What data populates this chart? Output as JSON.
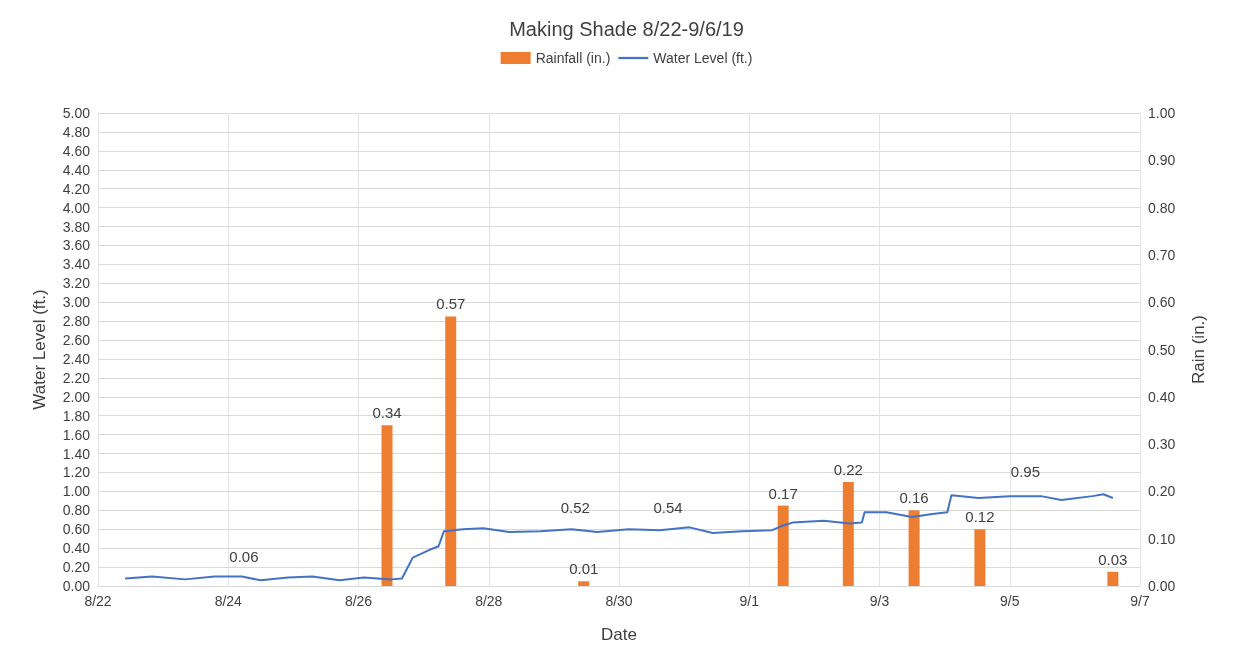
{
  "chart_data": {
    "type": "line",
    "title": "Making Shade 8/22-9/6/19",
    "xlabel": "Date",
    "ylabel": "Water Level (ft.)",
    "y2label": "Rain (in.)",
    "xlim": [
      "--08-22",
      "--09-07"
    ],
    "xticks": [
      {
        "value": "--08-22",
        "label": "8/22"
      },
      {
        "value": "--08-24",
        "label": "8/24"
      },
      {
        "value": "--08-26",
        "label": "8/26"
      },
      {
        "value": "--08-28",
        "label": "8/28"
      },
      {
        "value": "--08-30",
        "label": "8/30"
      },
      {
        "value": "--09-01",
        "label": "9/1"
      },
      {
        "value": "--09-03",
        "label": "9/3"
      },
      {
        "value": "--09-05",
        "label": "9/5"
      },
      {
        "value": "--09-07",
        "label": "9/7"
      }
    ],
    "ylim": [
      0,
      5
    ],
    "yticks": [
      {
        "value": 0,
        "label": "0.00"
      },
      {
        "value": 0.2,
        "label": "0.20"
      },
      {
        "value": 0.4,
        "label": "0.40"
      },
      {
        "value": 0.6,
        "label": "0.60"
      },
      {
        "value": 0.8,
        "label": "0.80"
      },
      {
        "value": 1,
        "label": "1.00"
      },
      {
        "value": 1.2,
        "label": "1.20"
      },
      {
        "value": 1.4,
        "label": "1.40"
      },
      {
        "value": 1.6,
        "label": "1.60"
      },
      {
        "value": 1.8,
        "label": "1.80"
      },
      {
        "value": 2,
        "label": "2.00"
      },
      {
        "value": 2.2,
        "label": "2.20"
      },
      {
        "value": 2.4,
        "label": "2.40"
      },
      {
        "value": 2.6,
        "label": "2.60"
      },
      {
        "value": 2.8,
        "label": "2.80"
      },
      {
        "value": 3,
        "label": "3.00"
      },
      {
        "value": 3.2,
        "label": "3.20"
      },
      {
        "value": 3.4,
        "label": "3.40"
      },
      {
        "value": 3.6,
        "label": "3.60"
      },
      {
        "value": 3.8,
        "label": "3.80"
      },
      {
        "value": 4,
        "label": "4.00"
      },
      {
        "value": 4.2,
        "label": "4.20"
      },
      {
        "value": 4.4,
        "label": "4.40"
      },
      {
        "value": 4.6,
        "label": "4.60"
      },
      {
        "value": 4.8,
        "label": "4.80"
      },
      {
        "value": 5,
        "label": "5.00"
      }
    ],
    "y2lim": [
      0,
      1
    ],
    "y2ticks": [
      {
        "value": 0,
        "label": "0.00"
      },
      {
        "value": 0.1,
        "label": "0.10"
      },
      {
        "value": 0.2,
        "label": "0.20"
      },
      {
        "value": 0.3,
        "label": "0.30"
      },
      {
        "value": 0.4,
        "label": "0.40"
      },
      {
        "value": 0.5,
        "label": "0.50"
      },
      {
        "value": 0.6,
        "label": "0.60"
      },
      {
        "value": 0.7,
        "label": "0.70"
      },
      {
        "value": 0.8,
        "label": "0.80"
      },
      {
        "value": 0.9,
        "label": "0.90"
      },
      {
        "value": 1,
        "label": "1.00"
      }
    ],
    "grid": true,
    "legend": "top",
    "marker": "none",
    "series": [
      {
        "name": "Rainfall (in.)",
        "type": "bar",
        "axis": "y2",
        "color": "#ed7d31",
        "data_labels": true,
        "x": [
          "--08-26T10:30",
          "--08-27T10:00",
          "--08-29T11:00",
          "--09-01T12:30",
          "--09-02T12:30",
          "--09-03T12:45",
          "--09-04T13:00",
          "--09-06T14:00"
        ],
        "values": [
          0.34,
          0.57,
          0.01,
          0.17,
          0.22,
          0.16,
          0.12,
          0.03
        ]
      },
      {
        "name": "Water Level (ft.)",
        "color": "#4472c4",
        "x": [
          "--08-22T10:00",
          "--08-22T20:00",
          "--08-23T08:00",
          "--08-23T19:00",
          "--08-24T05:00",
          "--08-24T12:00",
          "--08-24T22:00",
          "--08-25T07:00",
          "--08-25T17:00",
          "--08-26T02:00",
          "--08-26T12:00",
          "--08-26T16:00",
          "--08-26T20:00",
          "--08-27T02:00",
          "--08-27T05:30",
          "--08-27T07:30",
          "--08-27T14:30",
          "--08-27T22:00",
          "--08-28T07:30",
          "--08-28T19:00",
          "--08-29T06:30",
          "--08-29T16:00",
          "--08-30T03:30",
          "--08-30T15:00",
          "--08-31T02:00",
          "--08-31T10:30",
          "--08-31T21:30",
          "--09-01T08:30",
          "--09-01T12:30",
          "--09-01T16:00",
          "--09-02T03:30",
          "--09-02T13:00",
          "--09-02T17:30",
          "--09-02T18:30",
          "--09-03T02:30",
          "--09-03T12:00",
          "--09-03T19:30",
          "--09-04T01:00",
          "--09-04T02:30",
          "--09-04T12:30",
          "--09-05T00:00",
          "--09-05T11:30",
          "--09-05T19:00",
          "--09-06T06:30",
          "--09-06T10:30",
          "--09-06T14:00"
        ],
        "values": [
          0.08,
          0.1,
          0.07,
          0.1,
          0.1,
          0.06,
          0.09,
          0.1,
          0.06,
          0.09,
          0.07,
          0.08,
          0.3,
          0.38,
          0.42,
          0.58,
          0.6,
          0.61,
          0.57,
          0.58,
          0.6,
          0.57,
          0.6,
          0.59,
          0.62,
          0.56,
          0.58,
          0.59,
          0.64,
          0.67,
          0.69,
          0.66,
          0.67,
          0.78,
          0.78,
          0.73,
          0.76,
          0.78,
          0.96,
          0.93,
          0.95,
          0.95,
          0.91,
          0.95,
          0.97,
          0.93
        ]
      }
    ],
    "annotations": [
      "0.06",
      "0.52",
      "0.54",
      "0.95"
    ]
  }
}
